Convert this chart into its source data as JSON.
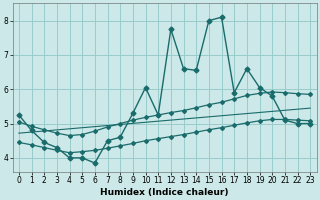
{
  "xlabel": "Humidex (Indice chaleur)",
  "bg_color": "#cce8e8",
  "grid_color": "#99cccc",
  "line_color": "#1a6b6b",
  "xlim": [
    -0.5,
    23.5
  ],
  "ylim": [
    3.6,
    8.5
  ],
  "yticks": [
    4,
    5,
    6,
    7,
    8
  ],
  "xticks": [
    0,
    1,
    2,
    3,
    4,
    5,
    6,
    7,
    8,
    9,
    10,
    11,
    12,
    13,
    14,
    15,
    16,
    17,
    18,
    19,
    20,
    21,
    22,
    23
  ],
  "series_main": {
    "x": [
      0,
      1,
      2,
      3,
      4,
      5,
      6,
      7,
      8,
      9,
      10,
      11,
      12,
      13,
      14,
      15,
      16,
      17,
      18,
      19,
      20,
      21,
      22,
      23
    ],
    "y": [
      5.25,
      4.8,
      4.45,
      4.3,
      4.0,
      4.0,
      3.85,
      4.5,
      4.6,
      5.3,
      6.05,
      5.25,
      7.75,
      6.6,
      6.55,
      8.0,
      8.1,
      5.9,
      6.6,
      6.05,
      5.8,
      5.1,
      5.0,
      5.0
    ]
  },
  "series_upper": {
    "x": [
      0,
      1,
      2,
      3,
      4,
      5,
      6,
      7,
      8,
      9,
      10,
      11,
      12,
      13,
      14,
      15,
      16,
      17,
      18,
      19,
      20,
      21,
      22,
      23
    ],
    "y": [
      5.05,
      4.92,
      4.82,
      4.72,
      4.65,
      4.68,
      4.78,
      4.9,
      5.0,
      5.1,
      5.18,
      5.25,
      5.32,
      5.38,
      5.46,
      5.55,
      5.62,
      5.72,
      5.82,
      5.88,
      5.92,
      5.9,
      5.87,
      5.85
    ]
  },
  "series_lower": {
    "x": [
      0,
      1,
      2,
      3,
      4,
      5,
      6,
      7,
      8,
      9,
      10,
      11,
      12,
      13,
      14,
      15,
      16,
      17,
      18,
      19,
      20,
      21,
      22,
      23
    ],
    "y": [
      4.45,
      4.38,
      4.3,
      4.22,
      4.15,
      4.18,
      4.22,
      4.28,
      4.35,
      4.42,
      4.5,
      4.56,
      4.62,
      4.68,
      4.75,
      4.82,
      4.88,
      4.95,
      5.02,
      5.08,
      5.12,
      5.12,
      5.1,
      5.08
    ]
  },
  "series_mid": {
    "x": [
      0,
      23
    ],
    "y": [
      4.72,
      5.45
    ]
  }
}
